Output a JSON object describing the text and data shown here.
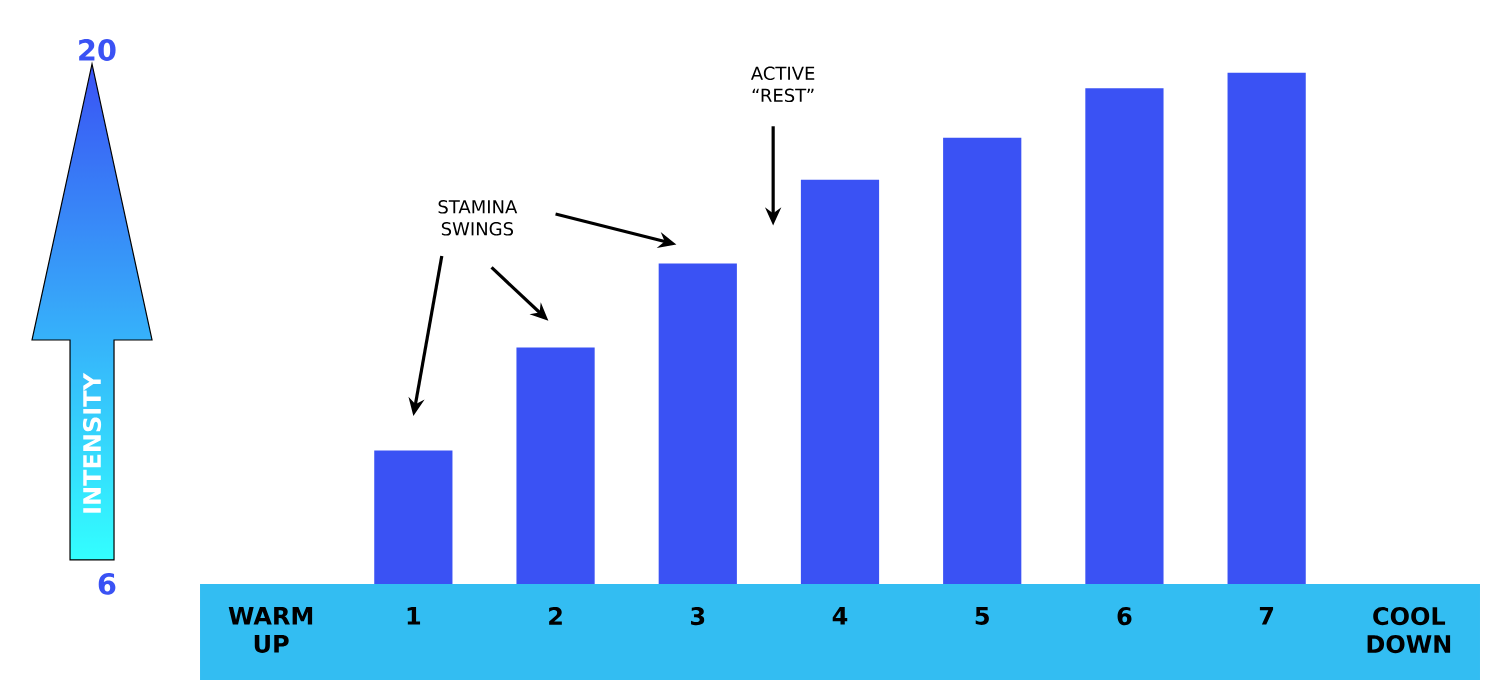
{
  "chart_data": {
    "type": "bar",
    "ylabel": "INTENSITY",
    "categories": [
      "WARM UP",
      "1",
      "2",
      "3",
      "4",
      "5",
      "6",
      "7",
      "COOL DOWN"
    ],
    "values": [
      null,
      9.5,
      12.2,
      14.4,
      16.6,
      17.7,
      19,
      19.4,
      null
    ],
    "color": "#3a52f4",
    "ylim": [
      6,
      20
    ],
    "yticks": [
      6,
      20
    ],
    "annotations": [
      "STAMINA SWINGS",
      "ACTIVE “REST”"
    ]
  }
}
